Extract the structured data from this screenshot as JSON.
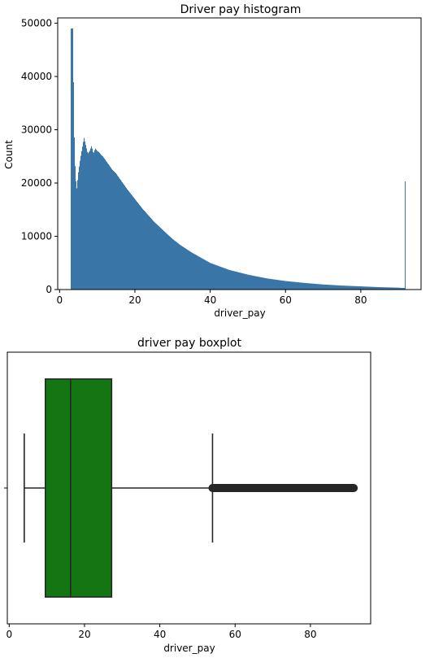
{
  "chart_data": [
    {
      "type": "histogram",
      "title": "Driver pay histogram",
      "xlabel": "driver_pay",
      "ylabel": "Count",
      "xlim": [
        -0.5,
        96
      ],
      "ylim": [
        0,
        51000
      ],
      "xticks": [
        0,
        20,
        40,
        60,
        80
      ],
      "yticks": [
        0,
        10000,
        20000,
        30000,
        40000,
        50000
      ],
      "bar_color": "#3a75a8",
      "bin_edges_x": [
        3.0,
        92.0
      ],
      "series": [
        {
          "x": [
            3.5,
            4.0,
            4.5,
            5.0,
            5.5,
            6.0,
            6.5,
            7.0,
            7.5,
            8.0,
            8.5,
            9.0,
            9.5,
            10.0,
            10.5,
            11.0,
            11.5,
            12.0,
            13.0,
            14.0,
            15.0,
            16.0,
            18.0,
            20.0,
            22.0,
            25.0,
            28.0,
            30.0,
            32.0,
            35.0,
            38.0,
            40.0,
            45.0,
            50.0,
            55.0,
            60.0,
            65.0,
            70.0,
            75.0,
            80.0,
            85.0,
            90.0,
            91.0,
            91.8
          ],
          "y": [
            49000,
            25000,
            18500,
            22000,
            24500,
            26500,
            28500,
            27000,
            25500,
            26000,
            27000,
            25500,
            26500,
            26000,
            25800,
            25300,
            25000,
            24500,
            23500,
            22500,
            21800,
            20800,
            18800,
            17000,
            15200,
            12800,
            10800,
            9500,
            8400,
            7000,
            5800,
            5000,
            3700,
            2800,
            2100,
            1600,
            1250,
            950,
            750,
            600,
            450,
            350,
            300,
            20300
          ]
        }
      ]
    },
    {
      "type": "boxplot",
      "title": "driver pay boxplot",
      "xlabel": "driver_pay",
      "xlim": [
        -0.5,
        96
      ],
      "xticks": [
        0,
        20,
        40,
        60,
        80
      ],
      "box_color": "#137613",
      "whisker_low": 4,
      "q1": 9.6,
      "median": 16.3,
      "q3": 27.2,
      "whisker_high": 54.0,
      "outliers_range": [
        54.0,
        91.5
      ]
    }
  ]
}
